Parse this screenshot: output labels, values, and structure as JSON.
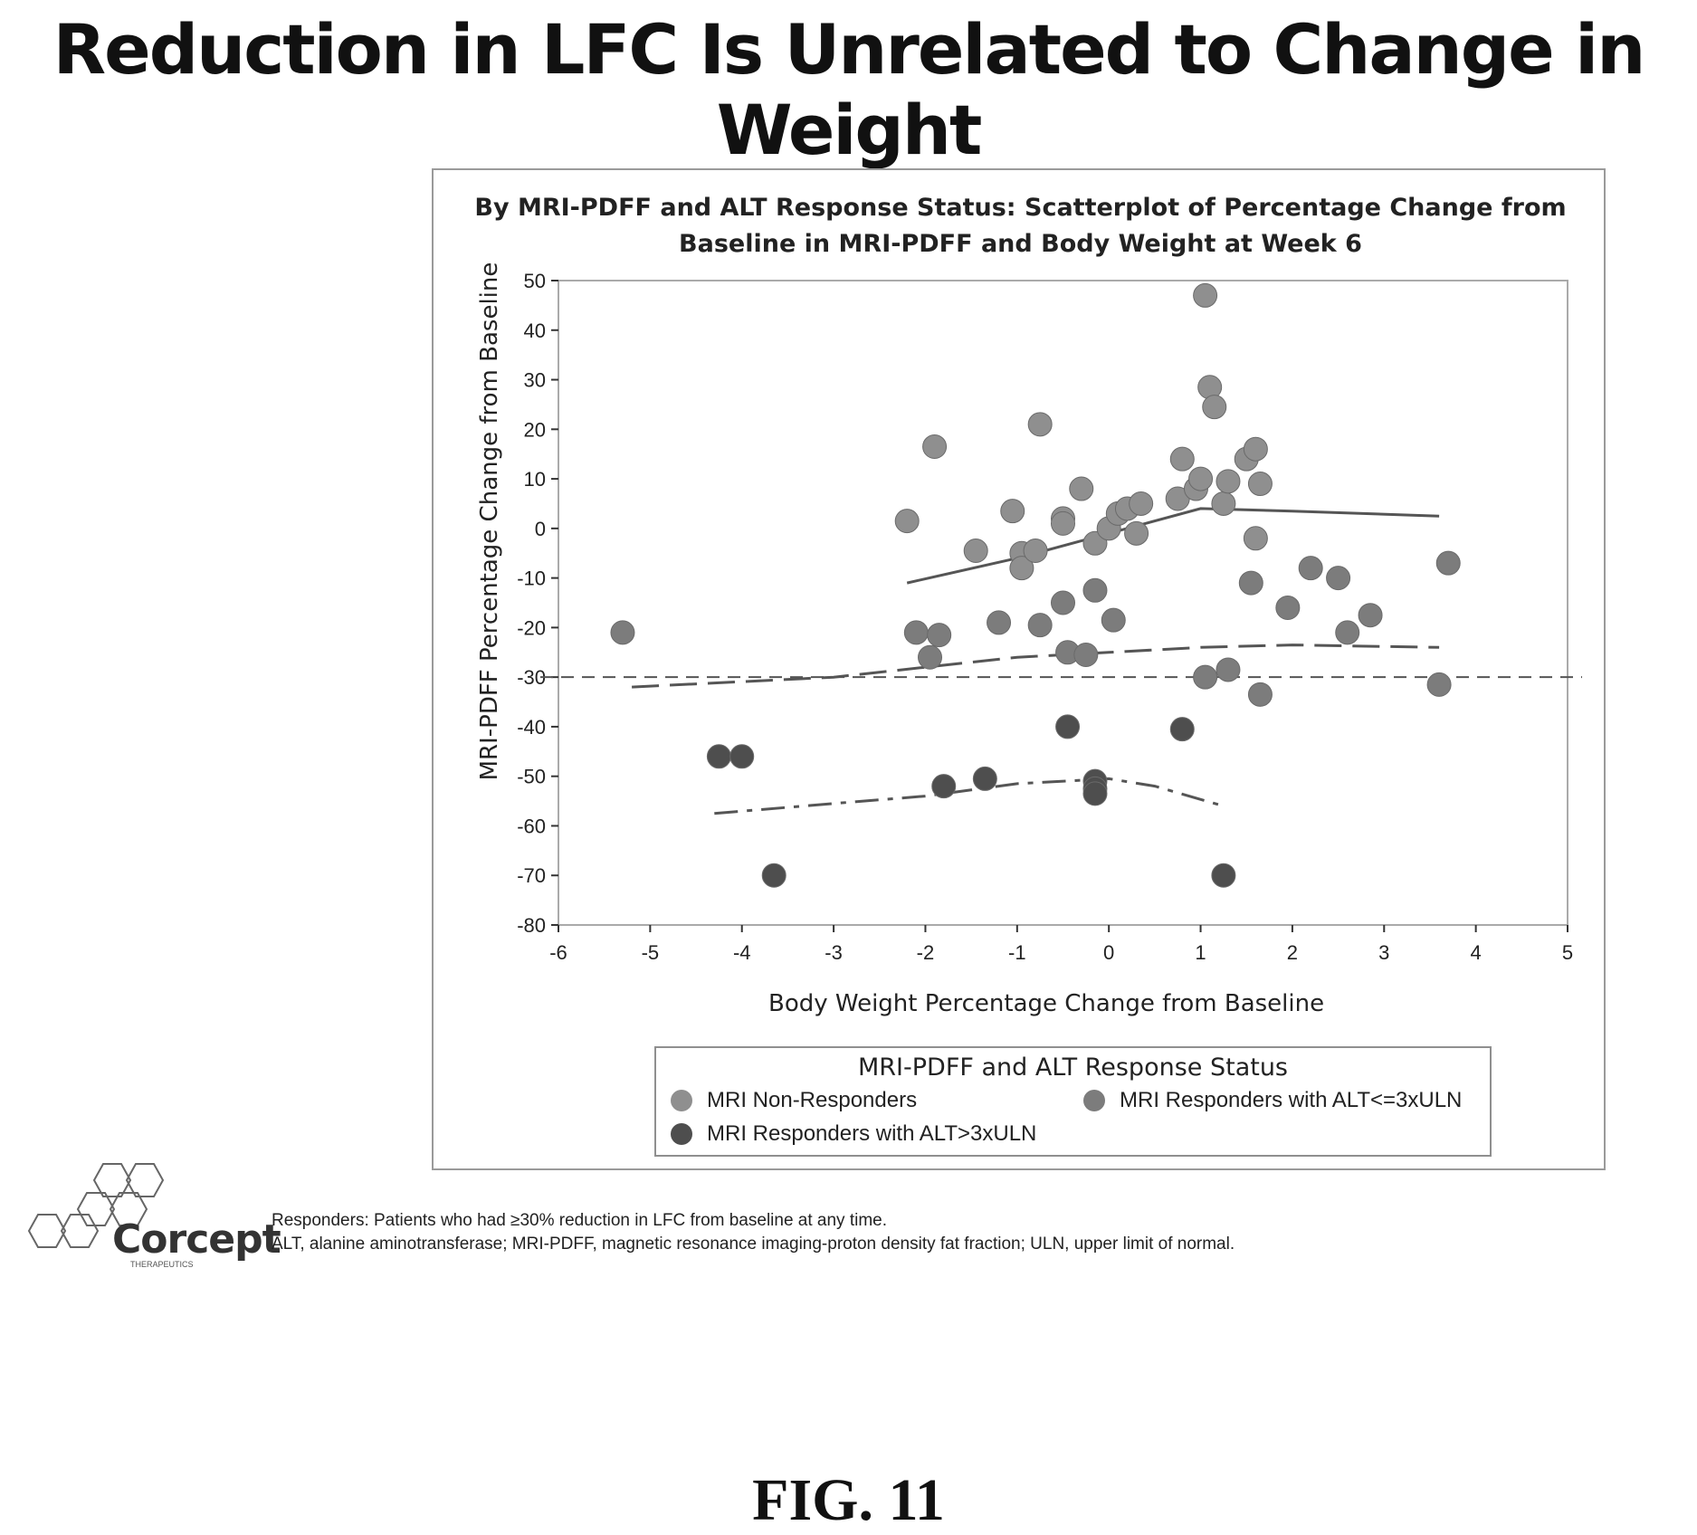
{
  "page": {
    "headline": "Reduction in LFC Is Unrelated to Change in Weight",
    "figure_label": "FIG. 11"
  },
  "logo": {
    "name": "Corcept",
    "subtitle": "THERAPEUTICS"
  },
  "footnotes": [
    "Responders: Patients who had ≥30% reduction in LFC from baseline at any time.",
    "ALT, alanine aminotransferase; MRI-PDFF, magnetic resonance imaging-proton density fat fraction; ULN, upper limit of normal."
  ],
  "colors": {
    "non_responders": "#8f8f8f",
    "responders_alt_low": "#7c7c7c",
    "responders_alt_high": "#4e4e4e",
    "axis": "#333333",
    "reference_line": "#555555"
  },
  "chart_data": {
    "type": "scatter",
    "title_line1": "By MRI-PDFF and ALT Response Status: Scatterplot of Percentage Change from",
    "title_line2": "Baseline in MRI-PDFF and Body Weight at Week 6",
    "xlabel": "Body Weight Percentage Change from Baseline",
    "ylabel": "MRI-PDFF Percentage Change from Baseline",
    "xlim": [
      -6,
      5
    ],
    "ylim": [
      -80,
      50
    ],
    "x_ticks": [
      -6,
      -5,
      -4,
      -3,
      -2,
      -1,
      0,
      1,
      2,
      3,
      4,
      5
    ],
    "y_ticks": [
      50,
      40,
      30,
      20,
      10,
      0,
      -10,
      -20,
      -30,
      -40,
      -50,
      -60,
      -70,
      -80
    ],
    "grid": false,
    "reference_line_y": -30,
    "legend": {
      "title": "MRI-PDFF and ALT Response Status",
      "placement": "bottom"
    },
    "series": [
      {
        "name": "MRI Non-Responders",
        "trend": [
          [
            -2.2,
            -11
          ],
          [
            -1.0,
            -6
          ],
          [
            0,
            -1
          ],
          [
            1.0,
            4
          ],
          [
            2.0,
            3.5
          ],
          [
            3.6,
            2.5
          ]
        ],
        "points": [
          [
            -2.2,
            1.5
          ],
          [
            -1.9,
            16.5
          ],
          [
            -1.45,
            -4.5
          ],
          [
            -1.05,
            3.5
          ],
          [
            -0.95,
            -5
          ],
          [
            -0.95,
            -8
          ],
          [
            -0.8,
            -4.5
          ],
          [
            -0.75,
            21
          ],
          [
            -0.5,
            2
          ],
          [
            -0.3,
            8
          ],
          [
            -0.5,
            1
          ],
          [
            -0.15,
            -3
          ],
          [
            0,
            0
          ],
          [
            0.1,
            3
          ],
          [
            0.2,
            4
          ],
          [
            0.3,
            -1
          ],
          [
            0.35,
            5
          ],
          [
            0.75,
            6
          ],
          [
            0.8,
            14
          ],
          [
            0.95,
            8
          ],
          [
            1.0,
            10
          ],
          [
            1.05,
            47
          ],
          [
            1.1,
            28.5
          ],
          [
            1.15,
            24.5
          ],
          [
            1.25,
            5
          ],
          [
            1.3,
            9.5
          ],
          [
            1.5,
            14
          ],
          [
            1.6,
            16
          ],
          [
            1.65,
            9
          ],
          [
            1.6,
            -2
          ]
        ]
      },
      {
        "name": "MRI Responders with ALT<=3xULN",
        "trend": [
          [
            -5.2,
            -32
          ],
          [
            -3.0,
            -30
          ],
          [
            -2.0,
            -28
          ],
          [
            -1.0,
            -26
          ],
          [
            0,
            -25
          ],
          [
            1.0,
            -24
          ],
          [
            2.0,
            -23.5
          ],
          [
            3.6,
            -24
          ]
        ],
        "points": [
          [
            -5.3,
            -21
          ],
          [
            -2.1,
            -21
          ],
          [
            -1.85,
            -21.5
          ],
          [
            -1.95,
            -26
          ],
          [
            -1.2,
            -19
          ],
          [
            -0.75,
            -19.5
          ],
          [
            -0.5,
            -15
          ],
          [
            -0.45,
            -25
          ],
          [
            -0.25,
            -25.5
          ],
          [
            -0.15,
            -12.5
          ],
          [
            0.05,
            -18.5
          ],
          [
            1.05,
            -30
          ],
          [
            1.3,
            -28.5
          ],
          [
            1.55,
            -11
          ],
          [
            1.65,
            -33.5
          ],
          [
            1.95,
            -16
          ],
          [
            2.2,
            -8
          ],
          [
            2.5,
            -10
          ],
          [
            2.6,
            -21
          ],
          [
            2.85,
            -17.5
          ],
          [
            3.6,
            -31.5
          ],
          [
            3.7,
            -7
          ]
        ]
      },
      {
        "name": "MRI Responders with ALT>3xULN",
        "trend": [
          [
            -4.3,
            -57.5
          ],
          [
            -3.0,
            -55.5
          ],
          [
            -2.0,
            -54
          ],
          [
            -1.0,
            -51.5
          ],
          [
            0,
            -50.5
          ],
          [
            0.5,
            -52
          ],
          [
            1.25,
            -56
          ]
        ],
        "points": [
          [
            -4.25,
            -46
          ],
          [
            -4.0,
            -46
          ],
          [
            -3.65,
            -70
          ],
          [
            -1.8,
            -52
          ],
          [
            -1.35,
            -50.5
          ],
          [
            -0.45,
            -40
          ],
          [
            -0.15,
            -51
          ],
          [
            -0.15,
            -52.5
          ],
          [
            -0.15,
            -53.5
          ],
          [
            0.8,
            -40.5
          ],
          [
            1.25,
            -70
          ]
        ]
      }
    ]
  }
}
